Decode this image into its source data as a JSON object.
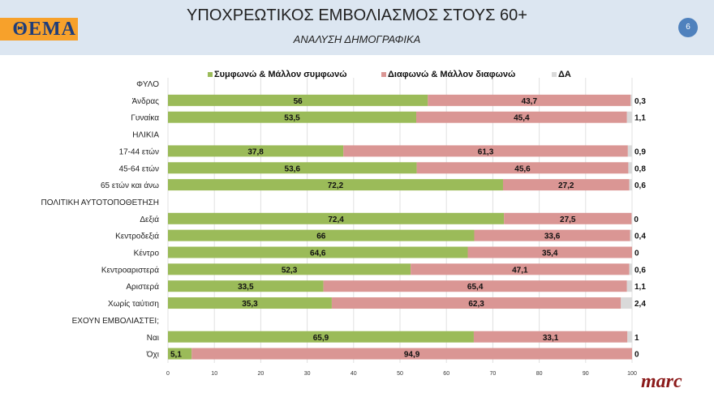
{
  "header": {
    "logo": "ΘΕΜΑ",
    "title": "ΥΠΟΧΡΕΩΤΙΚΟΣ ΕΜΒΟΛΙΑΣΜΟΣ ΣΤΟΥΣ 60+",
    "subtitle": "ΑΝΑΛΥΣΗ ΔΗΜΟΓΡΑΦΙΚΑ",
    "page": "6"
  },
  "footer": {
    "brand": "marc"
  },
  "colors": {
    "agree": "#9bbb59",
    "disagree": "#da9694",
    "na": "#d9d9d9"
  },
  "chart_data": {
    "type": "bar",
    "orientation": "horizontal",
    "stacked": true,
    "xlim": [
      0,
      100
    ],
    "xticks": [
      "0",
      "10",
      "20",
      "30",
      "40",
      "50",
      "60",
      "70",
      "80",
      "90",
      "100"
    ],
    "legend": [
      "Συμφωνώ & Μάλλον συμφωνώ",
      "Διαφωνώ & Μάλλον διαφωνώ",
      "ΔΑ"
    ],
    "legend_position": "top",
    "rows": [
      {
        "label": "ΦΥΛΟ",
        "values": null
      },
      {
        "label": "Άνδρας",
        "values": [
          56,
          43.7,
          0.3
        ],
        "labels": [
          "56",
          "43,7",
          "0,3"
        ]
      },
      {
        "label": "Γυναίκα",
        "values": [
          53.5,
          45.4,
          1.1
        ],
        "labels": [
          "53,5",
          "45,4",
          "1,1"
        ]
      },
      {
        "label": "ΗΛΙΚΙΑ",
        "values": null
      },
      {
        "label": "17-44 ετών",
        "values": [
          37.8,
          61.3,
          0.9
        ],
        "labels": [
          "37,8",
          "61,3",
          "0,9"
        ]
      },
      {
        "label": "45-64 ετών",
        "values": [
          53.6,
          45.6,
          0.8
        ],
        "labels": [
          "53,6",
          "45,6",
          "0,8"
        ]
      },
      {
        "label": "65 ετών και άνω",
        "values": [
          72.2,
          27.2,
          0.6
        ],
        "labels": [
          "72,2",
          "27,2",
          "0,6"
        ]
      },
      {
        "label": "ΠΟΛΙΤΙΚΗ ΑΥΤΟΤΟΠΟΘΕΤΗΣΗ",
        "values": null
      },
      {
        "label": "Δεξιά",
        "values": [
          72.4,
          27.5,
          0
        ],
        "labels": [
          "72,4",
          "27,5",
          "0"
        ]
      },
      {
        "label": "Κεντροδεξιά",
        "values": [
          66,
          33.6,
          0.4
        ],
        "labels": [
          "66",
          "33,6",
          "0,4"
        ]
      },
      {
        "label": "Κέντρο",
        "values": [
          64.6,
          35.4,
          0
        ],
        "labels": [
          "64,6",
          "35,4",
          "0"
        ]
      },
      {
        "label": "Κεντροαριστερά",
        "values": [
          52.3,
          47.1,
          0.6
        ],
        "labels": [
          "52,3",
          "47,1",
          "0,6"
        ]
      },
      {
        "label": "Αριστερά",
        "values": [
          33.5,
          65.4,
          1.1
        ],
        "labels": [
          "33,5",
          "65,4",
          "1,1"
        ]
      },
      {
        "label": "Χωρίς ταύτιση",
        "values": [
          35.3,
          62.3,
          2.4
        ],
        "labels": [
          "35,3",
          "62,3",
          "2,4"
        ]
      },
      {
        "label": "ΕΧΟΥΝ ΕΜΒΟΛΙΑΣΤΕΙ;",
        "values": null
      },
      {
        "label": "Ναι",
        "values": [
          65.9,
          33.1,
          1
        ],
        "labels": [
          "65,9",
          "33,1",
          "1"
        ]
      },
      {
        "label": "Όχι",
        "values": [
          5.1,
          94.9,
          0
        ],
        "labels": [
          "5,1",
          "94,9",
          "0"
        ]
      }
    ]
  }
}
